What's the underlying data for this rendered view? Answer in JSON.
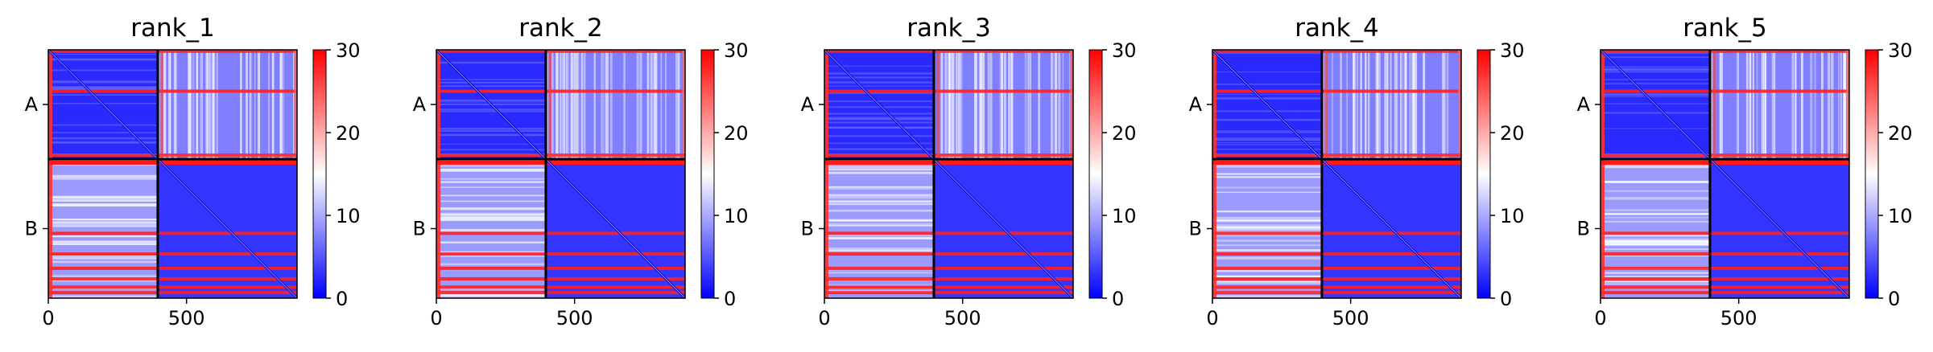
{
  "chart_data": {
    "type": "heatmap",
    "metric": "predicted aligned error",
    "colormap": {
      "name": "bwr",
      "colors": [
        "#0000ff",
        "#ffffff",
        "#ff0000"
      ]
    },
    "color_range": [
      0,
      30
    ],
    "colorbar_ticks": [
      "0",
      "10",
      "20",
      "30"
    ],
    "x_range": [
      0,
      900
    ],
    "x_ticks": [
      {
        "value": 0,
        "label": "0"
      },
      {
        "value": 500,
        "label": "500"
      }
    ],
    "chain_boundary": 396,
    "chains": [
      {
        "label": "A",
        "start": 0,
        "end": 396
      },
      {
        "label": "B",
        "start": 396,
        "end": 900
      }
    ],
    "panels": [
      {
        "title": "rank_1"
      },
      {
        "title": "rank_2"
      },
      {
        "title": "rank_3"
      },
      {
        "title": "rank_4"
      },
      {
        "title": "rank_5"
      }
    ]
  }
}
